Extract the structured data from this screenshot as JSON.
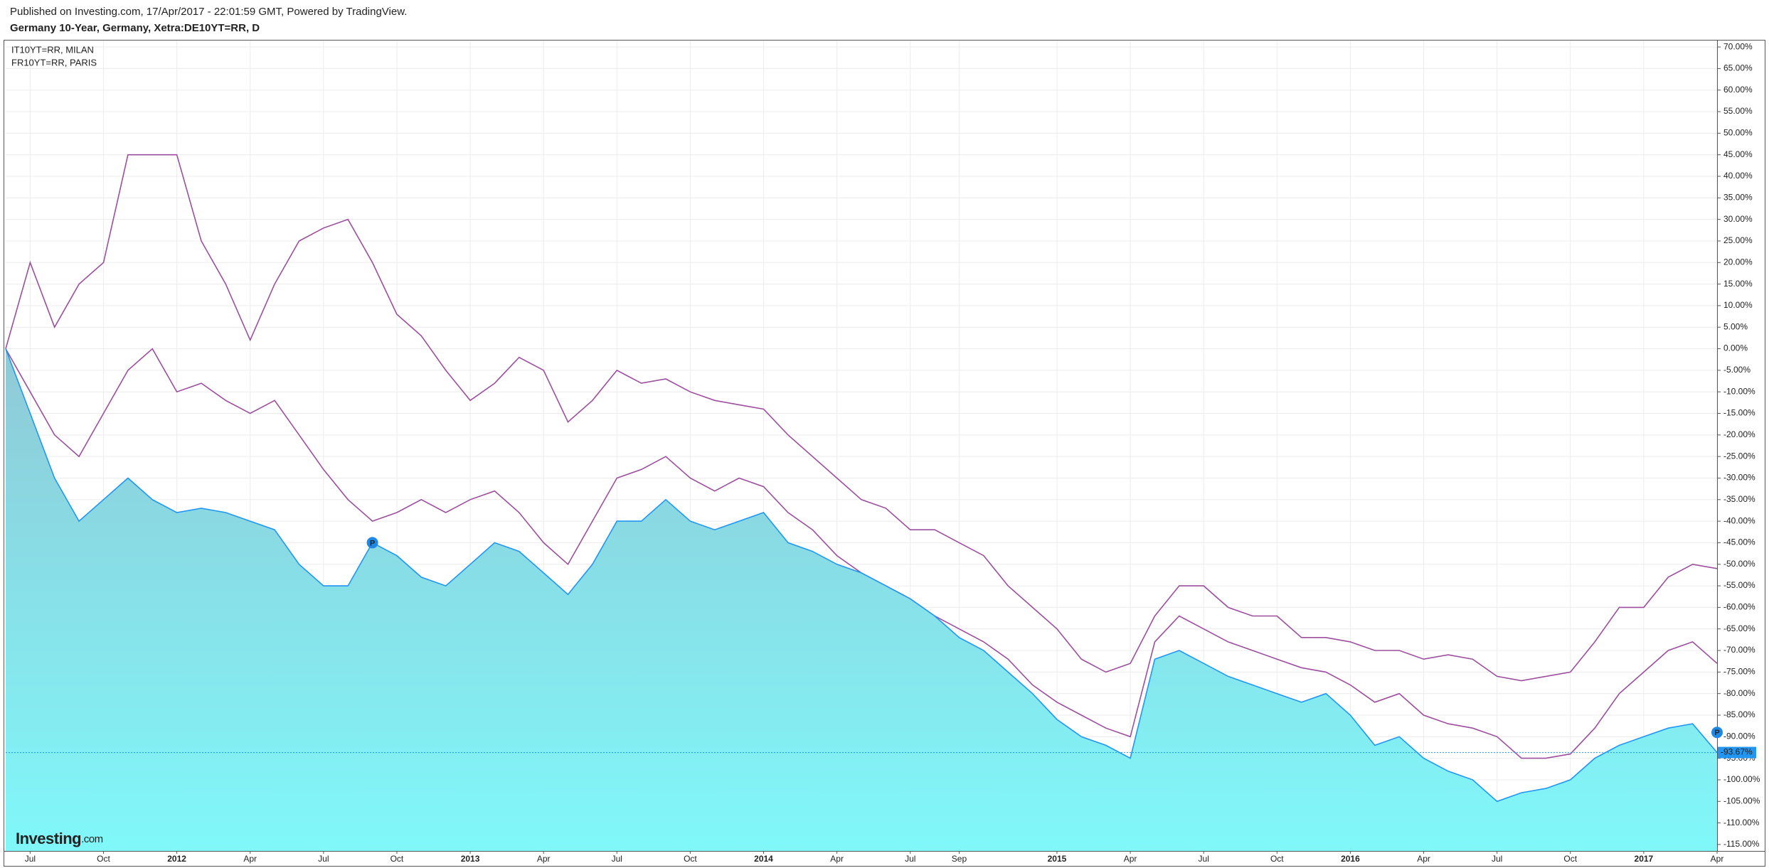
{
  "header": {
    "published": "Published on Investing.com, 17/Apr/2017 - 22:01:59 GMT, Powered by TradingView."
  },
  "logo": {
    "name": "Investing",
    "suffix": ".com"
  },
  "chart_data": {
    "type": "line",
    "title": "Germany 10-Year, Germany, Xetra:DE10YT=RR, D",
    "x": [
      "2011-06",
      "2011-07",
      "2011-08",
      "2011-09",
      "2011-10",
      "2011-11",
      "2011-12",
      "2012-01",
      "2012-02",
      "2012-03",
      "2012-04",
      "2012-05",
      "2012-06",
      "2012-07",
      "2012-08",
      "2012-09",
      "2012-10",
      "2012-11",
      "2012-12",
      "2013-01",
      "2013-02",
      "2013-03",
      "2013-04",
      "2013-05",
      "2013-06",
      "2013-07",
      "2013-08",
      "2013-09",
      "2013-10",
      "2013-11",
      "2013-12",
      "2014-01",
      "2014-02",
      "2014-03",
      "2014-04",
      "2014-05",
      "2014-06",
      "2014-07",
      "2014-08",
      "2014-09",
      "2014-10",
      "2014-11",
      "2014-12",
      "2015-01",
      "2015-02",
      "2015-03",
      "2015-04",
      "2015-05",
      "2015-06",
      "2015-07",
      "2015-08",
      "2015-09",
      "2015-10",
      "2015-11",
      "2015-12",
      "2016-01",
      "2016-02",
      "2016-03",
      "2016-04",
      "2016-05",
      "2016-06",
      "2016-07",
      "2016-08",
      "2016-09",
      "2016-10",
      "2016-11",
      "2016-12",
      "2017-01",
      "2017-02",
      "2017-03",
      "2017-04"
    ],
    "series": [
      {
        "name": "IT10YT=RR, MILAN",
        "color": "#9c4f9e",
        "area": false,
        "values": [
          0,
          20,
          5,
          15,
          20,
          45,
          45,
          45,
          25,
          15,
          2,
          15,
          25,
          28,
          30,
          20,
          8,
          3,
          -5,
          -12,
          -8,
          -2,
          -5,
          -17,
          -12,
          -5,
          -8,
          -7,
          -10,
          -12,
          -13,
          -14,
          -20,
          -25,
          -30,
          -35,
          -37,
          -42,
          -42,
          -45,
          -48,
          -55,
          -60,
          -65,
          -72,
          -75,
          -73,
          -62,
          -55,
          -55,
          -60,
          -62,
          -62,
          -67,
          -67,
          -68,
          -70,
          -70,
          -72,
          -71,
          -72,
          -76,
          -77,
          -76,
          -75,
          -68,
          -60,
          -60,
          -53,
          -50,
          -51
        ]
      },
      {
        "name": "FR10YT=RR, PARIS",
        "color": "#9c4f9e",
        "area": false,
        "values": [
          0,
          -10,
          -20,
          -25,
          -15,
          -5,
          0,
          -10,
          -8,
          -12,
          -15,
          -12,
          -20,
          -28,
          -35,
          -40,
          -38,
          -35,
          -38,
          -35,
          -33,
          -38,
          -45,
          -50,
          -40,
          -30,
          -28,
          -25,
          -30,
          -33,
          -30,
          -32,
          -38,
          -42,
          -48,
          -52,
          -55,
          -58,
          -62,
          -65,
          -68,
          -72,
          -78,
          -82,
          -85,
          -88,
          -90,
          -68,
          -62,
          -65,
          -68,
          -70,
          -72,
          -74,
          -75,
          -78,
          -82,
          -80,
          -85,
          -87,
          -88,
          -90,
          -95,
          -95,
          -94,
          -88,
          -80,
          -75,
          -70,
          -68,
          -73
        ]
      },
      {
        "color": "#2196f3",
        "area": true,
        "values": [
          0,
          -15,
          -30,
          -40,
          -35,
          -30,
          -35,
          -38,
          -37,
          -38,
          -40,
          -42,
          -50,
          -55,
          -55,
          -45,
          -48,
          -53,
          -55,
          -50,
          -45,
          -47,
          -52,
          -57,
          -50,
          -40,
          -40,
          -35,
          -40,
          -42,
          -40,
          -38,
          -45,
          -47,
          -50,
          -52,
          -55,
          -58,
          -62,
          -67,
          -70,
          -75,
          -80,
          -86,
          -90,
          -92,
          -95,
          -72,
          -70,
          -73,
          -76,
          -78,
          -80,
          -82,
          -80,
          -85,
          -92,
          -90,
          -95,
          -98,
          -100,
          -105,
          -103,
          -102,
          -100,
          -95,
          -92,
          -90,
          -88,
          -87,
          -93.67
        ],
        "value_labels": [
          null,
          null,
          null,
          null,
          null,
          null,
          null,
          null,
          null,
          null,
          null,
          null,
          null,
          null,
          null,
          null,
          null,
          null,
          null,
          null,
          null,
          null,
          null,
          null,
          null,
          null,
          null,
          null,
          null,
          null,
          null,
          null,
          null,
          null,
          null,
          null,
          null,
          null,
          null,
          null,
          null,
          null,
          null,
          null,
          null,
          null,
          null,
          null,
          null,
          null,
          null,
          null,
          null,
          null,
          null,
          null,
          null,
          null,
          null,
          null,
          null,
          null,
          null,
          null,
          null,
          null,
          null,
          null,
          null,
          null,
          "-93.67%"
        ]
      }
    ],
    "annotations": [
      {
        "text": "P",
        "x": "2012-09",
        "y": -45
      },
      {
        "text": "P",
        "x": "2017-04",
        "y": -89
      }
    ],
    "xlim": [
      "2011-06",
      "2017-04"
    ],
    "xticks": [
      {
        "value": "2011-07",
        "label": "Jul"
      },
      {
        "value": "2011-10",
        "label": "Oct"
      },
      {
        "value": "2012-01",
        "label": "2012"
      },
      {
        "value": "2012-04",
        "label": "Apr"
      },
      {
        "value": "2012-07",
        "label": "Jul"
      },
      {
        "value": "2012-10",
        "label": "Oct"
      },
      {
        "value": "2013-01",
        "label": "2013"
      },
      {
        "value": "2013-04",
        "label": "Apr"
      },
      {
        "value": "2013-07",
        "label": "Jul"
      },
      {
        "value": "2013-10",
        "label": "Oct"
      },
      {
        "value": "2014-01",
        "label": "2014"
      },
      {
        "value": "2014-04",
        "label": "Apr"
      },
      {
        "value": "2014-07",
        "label": "Jul"
      },
      {
        "value": "2014-09",
        "label": "Sep"
      },
      {
        "value": "2015-01",
        "label": "2015"
      },
      {
        "value": "2015-04",
        "label": "Apr"
      },
      {
        "value": "2015-07",
        "label": "Jul"
      },
      {
        "value": "2015-10",
        "label": "Oct"
      },
      {
        "value": "2016-01",
        "label": "2016"
      },
      {
        "value": "2016-04",
        "label": "Apr"
      },
      {
        "value": "2016-07",
        "label": "Jul"
      },
      {
        "value": "2016-10",
        "label": "Oct"
      },
      {
        "value": "2017-01",
        "label": "2017"
      },
      {
        "value": "2017-04",
        "label": "Apr"
      }
    ],
    "ylim": [
      -116.5,
      71.5
    ],
    "yticks": [
      {
        "value": 70,
        "label": "70.00%"
      },
      {
        "value": 65,
        "label": "65.00%"
      },
      {
        "value": 60,
        "label": "60.00%"
      },
      {
        "value": 55,
        "label": "55.00%"
      },
      {
        "value": 50,
        "label": "50.00%"
      },
      {
        "value": 45,
        "label": "45.00%"
      },
      {
        "value": 40,
        "label": "40.00%"
      },
      {
        "value": 35,
        "label": "35.00%"
      },
      {
        "value": 30,
        "label": "30.00%"
      },
      {
        "value": 25,
        "label": "25.00%"
      },
      {
        "value": 20,
        "label": "20.00%"
      },
      {
        "value": 15,
        "label": "15.00%"
      },
      {
        "value": 10,
        "label": "10.00%"
      },
      {
        "value": 5,
        "label": "5.00%"
      },
      {
        "value": 0,
        "label": "0.00%"
      },
      {
        "value": -5,
        "label": "-5.00%"
      },
      {
        "value": -10,
        "label": "-10.00%"
      },
      {
        "value": -15,
        "label": "-15.00%"
      },
      {
        "value": -20,
        "label": "-20.00%"
      },
      {
        "value": -25,
        "label": "-25.00%"
      },
      {
        "value": -30,
        "label": "-30.00%"
      },
      {
        "value": -35,
        "label": "-35.00%"
      },
      {
        "value": -40,
        "label": "-40.00%"
      },
      {
        "value": -45,
        "label": "-45.00%"
      },
      {
        "value": -50,
        "label": "-50.00%"
      },
      {
        "value": -55,
        "label": "-55.00%"
      },
      {
        "value": -60,
        "label": "-60.00%"
      },
      {
        "value": -65,
        "label": "-65.00%"
      },
      {
        "value": -70,
        "label": "-70.00%"
      },
      {
        "value": -75,
        "label": "-75.00%"
      },
      {
        "value": -80,
        "label": "-80.00%"
      },
      {
        "value": -85,
        "label": "-85.00%"
      },
      {
        "value": -90,
        "label": "-90.00%"
      },
      {
        "value": -95,
        "label": "-95.00%"
      },
      {
        "value": -100,
        "label": "-100.00%"
      },
      {
        "value": -105,
        "label": "-105.00%"
      },
      {
        "value": -110,
        "label": "-110.00%"
      },
      {
        "value": -115,
        "label": "-115.00%"
      }
    ],
    "grid": true
  }
}
